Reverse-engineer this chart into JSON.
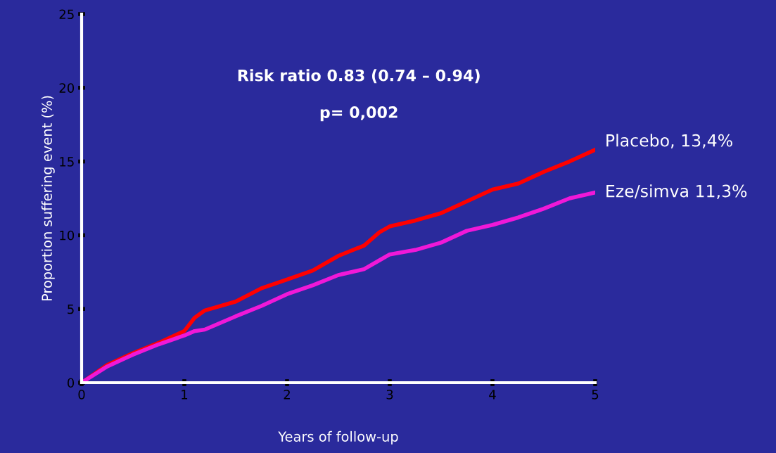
{
  "chart_data": {
    "type": "line",
    "xlabel": "Years of follow-up",
    "ylabel": "Proportion suffering event (%)",
    "annotations": [
      "Risk ratio 0.83 (0.74 – 0.94)",
      "p= 0,002"
    ],
    "xlim": [
      0,
      5
    ],
    "ylim": [
      0,
      25
    ],
    "xticks": [
      0,
      1,
      2,
      3,
      4,
      5
    ],
    "yticks": [
      0,
      5,
      10,
      15,
      20,
      25
    ],
    "grid": false,
    "legend": false,
    "marker": "none",
    "line_style": "solid",
    "x": [
      0,
      0.25,
      0.5,
      0.75,
      1,
      1.1,
      1.2,
      1.5,
      1.75,
      2,
      2.25,
      2.5,
      2.75,
      2.9,
      3,
      3.25,
      3.5,
      3.75,
      4,
      4.25,
      4.5,
      4.75,
      5
    ],
    "series": [
      {
        "name": "Placebo, 13,4%",
        "color": "#ff0000",
        "values": [
          0,
          1.2,
          2.0,
          2.7,
          3.5,
          4.4,
          4.9,
          5.5,
          6.4,
          7.0,
          7.6,
          8.6,
          9.3,
          10.2,
          10.6,
          11.0,
          11.5,
          12.3,
          13.1,
          13.5,
          14.3,
          15.0,
          15.8
        ]
      },
      {
        "name": "Eze/simva 11,3%",
        "color": "#f018d8",
        "values": [
          0,
          1.1,
          1.9,
          2.6,
          3.2,
          3.5,
          3.6,
          4.5,
          5.2,
          6.0,
          6.6,
          7.3,
          7.7,
          8.3,
          8.7,
          9.0,
          9.5,
          10.3,
          10.7,
          11.2,
          11.8,
          12.5,
          12.9
        ]
      }
    ]
  }
}
